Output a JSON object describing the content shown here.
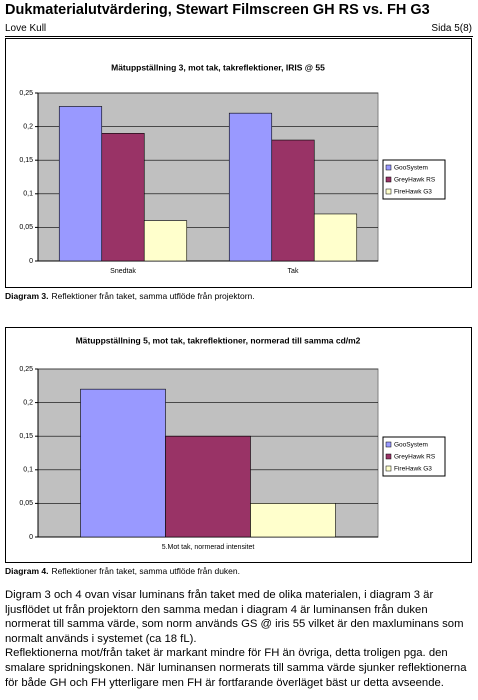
{
  "header": {
    "title": "Dukmaterialutvärdering, Stewart Filmscreen GH RS vs. FH G3",
    "author": "Love Kull",
    "page": "Sida 5(8)"
  },
  "chart_data": [
    {
      "type": "bar",
      "title": "Mätuppställning 3, mot tak, takreflektioner, IRIS @ 55",
      "categories": [
        "Snedtak",
        "Tak"
      ],
      "series": [
        {
          "name": "GooSystem",
          "color": "#9999ff",
          "values": [
            0.23,
            0.22
          ]
        },
        {
          "name": "GreyHawk RS",
          "color": "#993366",
          "values": [
            0.19,
            0.18
          ]
        },
        {
          "name": "FireHawk G3",
          "color": "#ffffcc",
          "values": [
            0.06,
            0.07
          ]
        }
      ],
      "ylim": [
        0,
        0.25
      ],
      "yticks": [
        0,
        {
          "value": 0.05,
          "label": "0,05"
        },
        {
          "value": 0.1,
          "label": "0,1"
        },
        {
          "value": 0.15,
          "label": "0,15"
        },
        {
          "value": 0.2,
          "label": "0,2"
        },
        {
          "value": 0.25,
          "label": "0,25"
        }
      ],
      "grid": true,
      "legend": "right"
    },
    {
      "type": "bar",
      "title": "Mätuppställning 5, mot tak, takreflektioner, normerad till samma cd/m2",
      "categories": [
        "5.Mot tak, normerad intensitet"
      ],
      "series": [
        {
          "name": "GooSystem",
          "color": "#9999ff",
          "values": [
            0.22
          ]
        },
        {
          "name": "GreyHawk RS",
          "color": "#993366",
          "values": [
            0.15
          ]
        },
        {
          "name": "FireHawk G3",
          "color": "#ffffcc",
          "values": [
            0.05
          ]
        }
      ],
      "ylim": [
        0,
        0.25
      ],
      "yticks": [
        0,
        {
          "value": 0.05,
          "label": "0,05"
        },
        {
          "value": 0.1,
          "label": "0,1"
        },
        {
          "value": 0.15,
          "label": "0,15"
        },
        {
          "value": 0.2,
          "label": "0,2"
        },
        {
          "value": 0.25,
          "label": "0,25"
        }
      ],
      "grid": true,
      "legend": "right"
    }
  ],
  "captions": [
    {
      "label": "Diagram 3.",
      "text": "Reflektioner från taket, samma utflöde från projektorn."
    },
    {
      "label": "Diagram 4.",
      "text": "Reflektioner från taket, samma utflöde från duken."
    }
  ],
  "body": [
    "Digram 3 och 4 ovan visar luminans från taket med de olika materialen, i diagram 3 är ljusflödet ut från projektorn den samma medan i diagram 4 är luminansen från duken normerat till samma värde, som norm används GS @ iris 55 vilket är den maxluminans som normalt används i systemet (ca 18 fL).",
    "Reflektionerna mot/från taket är markant mindre för FH än övriga, detta troligen pga. den smalare spridningskonen. När luminansen normerats till samma värde sjunker reflektionerna för både GH och FH ytterligare men FH är fortfarande överläget bäst ur detta avseende."
  ]
}
